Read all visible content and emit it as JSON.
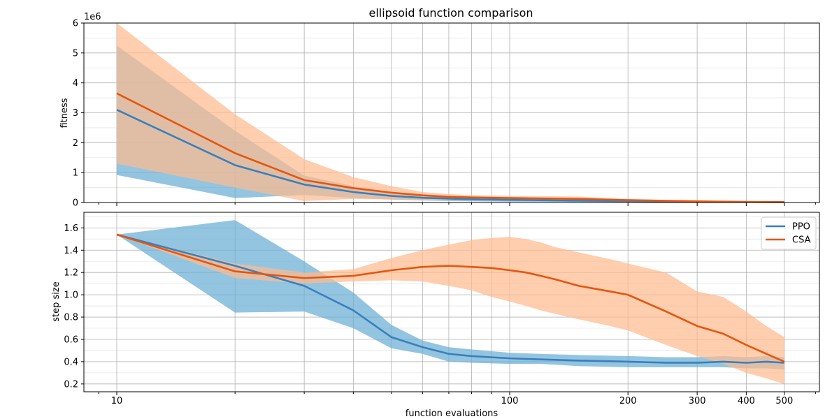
{
  "chart_data": {
    "type": "line",
    "title": "ellipsoid function comparison",
    "xlabel": "function evaluations",
    "x_scale": "log",
    "x_ticks": [
      10,
      100,
      200,
      300,
      400,
      500
    ],
    "x_tick_labels": [
      "10",
      "100",
      "200",
      "300",
      "400",
      "500"
    ],
    "legend": {
      "placement": "upper right",
      "panel": "bottom"
    },
    "colors": {
      "PPO_line": "#3a7fbd",
      "PPO_band": "#6aaed6",
      "CSA_line": "#e6550d",
      "CSA_band": "#fdbb8f"
    },
    "panels": [
      {
        "ylabel": "fitness",
        "offset_label": "1e6",
        "ylim": [
          0,
          6
        ],
        "y_ticks": [
          0,
          1,
          2,
          3,
          4,
          5,
          6
        ],
        "y_tick_labels": [
          "0",
          "1",
          "2",
          "3",
          "4",
          "5",
          "6"
        ],
        "grid": true,
        "series": [
          {
            "key": "PPO",
            "x": [
              10,
              20,
              30,
              40,
              50,
              60,
              70,
              80,
              100,
              150,
              200,
              300,
              400,
              500
            ],
            "mean": [
              3.1,
              1.25,
              0.6,
              0.35,
              0.22,
              0.16,
              0.13,
              0.11,
              0.09,
              0.06,
              0.05,
              0.03,
              0.02,
              0.02
            ],
            "lower": [
              0.92,
              0.15,
              0.25,
              0.15,
              0.1,
              0.07,
              0.05,
              0.04,
              0.03,
              0.02,
              0.015,
              0.01,
              0.01,
              0.01
            ],
            "upper": [
              5.25,
              2.4,
              0.9,
              0.55,
              0.35,
              0.26,
              0.2,
              0.17,
              0.13,
              0.09,
              0.07,
              0.05,
              0.03,
              0.03
            ]
          },
          {
            "key": "CSA",
            "x": [
              10,
              20,
              30,
              40,
              50,
              60,
              70,
              80,
              100,
              150,
              200,
              300,
              400,
              500
            ],
            "mean": [
              3.65,
              1.65,
              0.75,
              0.48,
              0.33,
              0.24,
              0.19,
              0.17,
              0.15,
              0.12,
              0.08,
              0.04,
              0.02,
              0.01
            ],
            "lower": [
              1.3,
              0.5,
              0.05,
              0.12,
              0.1,
              0.09,
              0.08,
              0.07,
              0.06,
              0.04,
              0.03,
              0.01,
              0.005,
              0.002
            ],
            "upper": [
              6.0,
              2.95,
              1.45,
              0.85,
              0.55,
              0.35,
              0.28,
              0.25,
              0.22,
              0.2,
              0.12,
              0.06,
              0.04,
              0.02
            ]
          }
        ]
      },
      {
        "ylabel": "step size",
        "ylim": [
          0.13,
          1.74
        ],
        "y_ticks": [
          0.2,
          0.4,
          0.6,
          0.8,
          1.0,
          1.2,
          1.4,
          1.6
        ],
        "y_tick_labels": [
          "0.2",
          "0.4",
          "0.6",
          "0.8",
          "1.0",
          "1.2",
          "1.4",
          "1.6"
        ],
        "grid": true,
        "series": [
          {
            "key": "PPO",
            "name": "PPO",
            "x": [
              10,
              20,
              30,
              40,
              50,
              60,
              70,
              80,
              100,
              120,
              150,
              200,
              250,
              300,
              350,
              400,
              450,
              500
            ],
            "mean": [
              1.54,
              1.26,
              1.08,
              0.86,
              0.62,
              0.53,
              0.47,
              0.45,
              0.43,
              0.42,
              0.41,
              0.4,
              0.39,
              0.39,
              0.4,
              0.39,
              0.4,
              0.39
            ],
            "lower": [
              1.54,
              0.84,
              0.85,
              0.7,
              0.52,
              0.47,
              0.4,
              0.39,
              0.38,
              0.38,
              0.36,
              0.35,
              0.35,
              0.35,
              0.35,
              0.34,
              0.34,
              0.33
            ],
            "upper": [
              1.54,
              1.67,
              1.3,
              1.02,
              0.73,
              0.59,
              0.53,
              0.51,
              0.48,
              0.47,
              0.46,
              0.45,
              0.44,
              0.44,
              0.45,
              0.44,
              0.45,
              0.44
            ]
          },
          {
            "key": "CSA",
            "name": "CSA",
            "x": [
              10,
              20,
              30,
              40,
              50,
              60,
              70,
              80,
              90,
              100,
              110,
              120,
              130,
              150,
              180,
              200,
              250,
              300,
              350,
              400,
              450,
              500
            ],
            "mean": [
              1.54,
              1.21,
              1.15,
              1.17,
              1.22,
              1.25,
              1.26,
              1.25,
              1.24,
              1.22,
              1.2,
              1.17,
              1.14,
              1.08,
              1.03,
              1.0,
              0.85,
              0.72,
              0.65,
              0.55,
              0.47,
              0.4
            ],
            "lower": [
              1.54,
              1.15,
              1.1,
              1.12,
              1.13,
              1.12,
              1.08,
              1.04,
              0.98,
              0.94,
              0.9,
              0.86,
              0.83,
              0.78,
              0.72,
              0.68,
              0.55,
              0.45,
              0.38,
              0.3,
              0.25,
              0.2
            ],
            "upper": [
              1.54,
              1.28,
              1.2,
              1.23,
              1.33,
              1.4,
              1.45,
              1.49,
              1.51,
              1.52,
              1.5,
              1.47,
              1.43,
              1.38,
              1.32,
              1.28,
              1.2,
              1.03,
              0.98,
              0.85,
              0.72,
              0.62
            ]
          }
        ]
      }
    ]
  }
}
